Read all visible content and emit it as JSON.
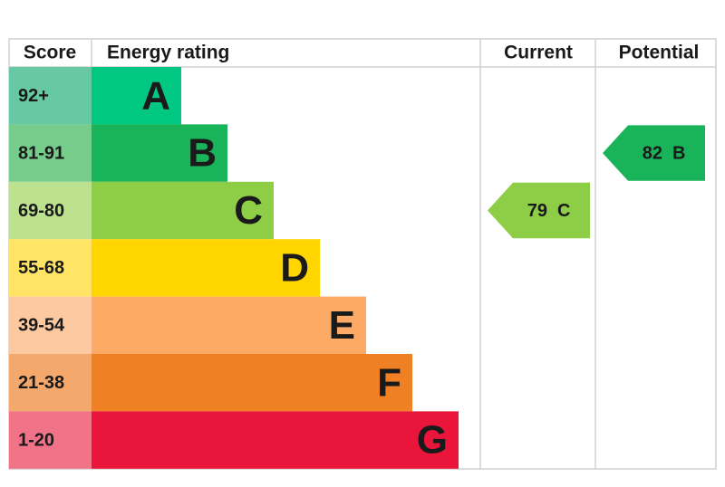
{
  "header": {
    "score": "Score",
    "rating": "Energy rating",
    "current": "Current",
    "potential": "Potential"
  },
  "bands": [
    {
      "score": "92+",
      "letter": "A",
      "color": "#00c781",
      "score_color": "#66c9a3"
    },
    {
      "score": "81-91",
      "letter": "B",
      "color": "#19b459",
      "score_color": "#76cc8b"
    },
    {
      "score": "69-80",
      "letter": "C",
      "color": "#8dce46",
      "score_color": "#bde28f"
    },
    {
      "score": "55-68",
      "letter": "D",
      "color": "#ffd500",
      "score_color": "#ffe466"
    },
    {
      "score": "39-54",
      "letter": "E",
      "color": "#fcaa65",
      "score_color": "#fdc9a0"
    },
    {
      "score": "21-38",
      "letter": "F",
      "color": "#ef8023",
      "score_color": "#f4a86b"
    },
    {
      "score": "1-20",
      "letter": "G",
      "color": "#e9153b",
      "score_color": "#f07388"
    }
  ],
  "current": {
    "value": 79,
    "letter": "C"
  },
  "potential": {
    "value": 82,
    "letter": "B"
  }
}
